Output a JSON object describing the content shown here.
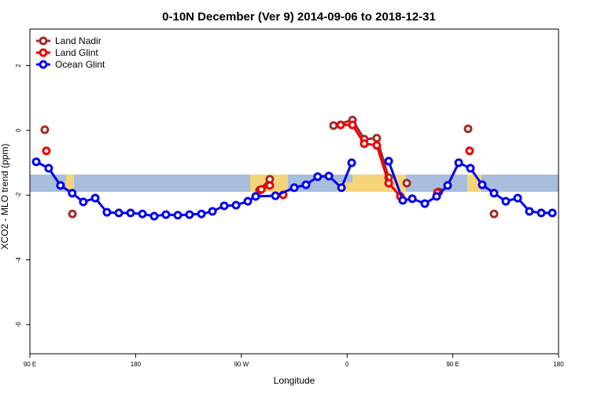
{
  "chart_data": {
    "type": "line",
    "title": "0-10N December (Ver 9)   2014-09-06 to 2018-12-31",
    "x_label": "Longitude",
    "y_label": "XCO2 - MLO trend (ppm)",
    "xlim": [
      90,
      540
    ],
    "ylim": [
      -6.9,
      3.13
    ],
    "xticks": [
      {
        "value": 90,
        "label": "90 E"
      },
      180,
      {
        "value": 270,
        "label": "90 W"
      },
      {
        "value": 360,
        "label": "0"
      },
      {
        "value": 450,
        "label": "90 E"
      },
      {
        "value": 540,
        "label": "180"
      }
    ],
    "yticks": [
      2,
      0,
      -2,
      -4,
      -6
    ],
    "legend": "top-left",
    "series": [
      {
        "name": "Land Nadir",
        "color": "#a52a2a",
        "x": [
          102.7,
          null,
          126.2,
          null,
          285.5,
          294.2,
          null,
          348.5,
          364.6,
          374.6,
          385.3,
          395.4,
          null,
          410.8,
          null,
          438.2,
          null,
          463,
          null,
          485.1
        ],
        "values": [
          0.02,
          null,
          -2.58,
          null,
          -1.85,
          -1.51,
          null,
          0.15,
          0.32,
          -0.27,
          -0.24,
          -1.46,
          null,
          -1.63,
          null,
          -1.9,
          null,
          0.05,
          null,
          -2.58
        ]
      },
      {
        "name": "Land Glint",
        "color": "#ee0000",
        "x": [
          104,
          null,
          287,
          294.2,
          null,
          305.6,
          null,
          354.5,
          364.6,
          374.6,
          385.3,
          395.4,
          405.4,
          null,
          436.9,
          null,
          464.3
        ],
        "values": [
          -0.63,
          null,
          -1.82,
          -1.7,
          null,
          -1.99,
          null,
          0.17,
          0.17,
          -0.41,
          -0.46,
          -1.63,
          -2.04,
          null,
          -1.92,
          null,
          -0.63
        ]
      },
      {
        "name": "Ocean Glint",
        "color": "#0000ee",
        "x": [
          95.4,
          106,
          116,
          126,
          135.5,
          145.6,
          155.6,
          165.7,
          175.7,
          185.8,
          195.8,
          205.8,
          215.9,
          225.9,
          236,
          245.4,
          255.4,
          265.5,
          275.5,
          282.2,
          299,
          315,
          325,
          335,
          344.5,
          355.2,
          363.9,
          null,
          395.4,
          407.4,
          415.5,
          426.2,
          436.2,
          445.6,
          455,
          465,
          475,
          485.1,
          495.1,
          505.2,
          515.2,
          525.3,
          534.7
        ],
        "values": [
          -0.97,
          -1.17,
          -1.7,
          -1.94,
          -2.21,
          -2.09,
          -2.53,
          -2.55,
          -2.55,
          -2.58,
          -2.65,
          -2.6,
          -2.62,
          -2.6,
          -2.58,
          -2.5,
          -2.33,
          -2.31,
          -2.19,
          -2.04,
          -2.02,
          -1.77,
          -1.68,
          -1.43,
          -1.41,
          -1.77,
          -1.0,
          null,
          -0.95,
          -2.16,
          -2.11,
          -2.26,
          -2.04,
          -1.7,
          -1.0,
          -1.17,
          -1.68,
          -1.94,
          -2.19,
          -2.09,
          -2.5,
          -2.55,
          -2.55
        ]
      }
    ]
  }
}
